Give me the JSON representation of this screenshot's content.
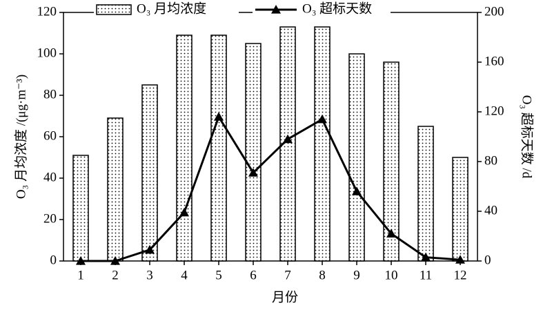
{
  "chart_data": {
    "type": "combo",
    "x_label": "月份",
    "y_label": "O₃ 月均浓度 /(μg·m⁻³)",
    "y2_label": "O₃ 超标天数 /d",
    "categories": [
      "1",
      "2",
      "3",
      "4",
      "5",
      "6",
      "7",
      "8",
      "9",
      "10",
      "11",
      "12"
    ],
    "series": [
      {
        "name": "O₃ 月均浓度",
        "type": "bar",
        "color": "#000000",
        "values": [
          51,
          69,
          85,
          109,
          109,
          105,
          113,
          113,
          100,
          96,
          65,
          50
        ]
      },
      {
        "name": "O₃ 超标天数",
        "type": "line",
        "axis": "y2",
        "color": "#000000",
        "values": [
          0,
          0,
          9,
          39,
          116,
          71,
          98,
          114,
          56,
          22,
          3,
          1
        ]
      }
    ],
    "ylim": [
      0,
      120
    ],
    "yticks": [
      0,
      20,
      40,
      60,
      80,
      100,
      120
    ],
    "y2lim": [
      0,
      200
    ],
    "y2ticks": [
      0,
      40,
      80,
      120,
      160,
      200
    ],
    "legend": "top",
    "grid": false
  }
}
